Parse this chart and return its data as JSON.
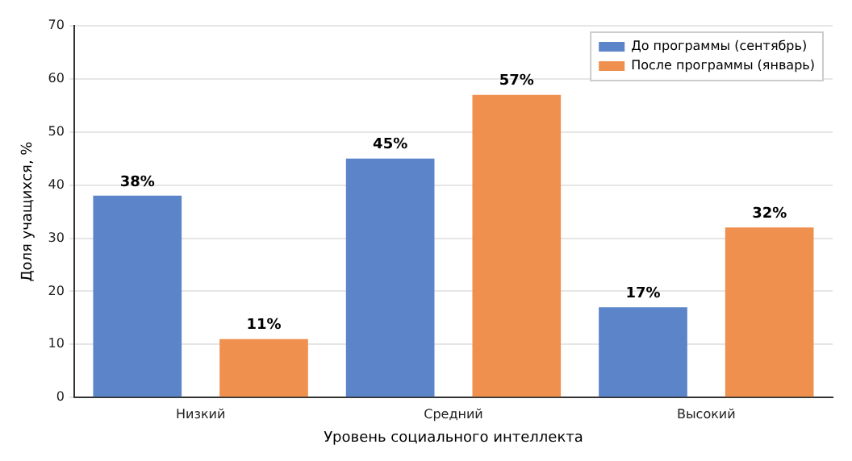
{
  "chart_data": {
    "type": "bar",
    "xlabel": "Уровень социального интеллекта",
    "ylabel": "Доля учащихся, %",
    "categories": [
      "Низкий",
      "Средний",
      "Высокий"
    ],
    "series": [
      {
        "name": "До программы (сентябрь)",
        "color": "#5b84c9",
        "values": [
          38,
          45,
          17
        ],
        "value_labels": [
          "38%",
          "45%",
          "17%"
        ]
      },
      {
        "name": "После программы (январь)",
        "color": "#f0904f",
        "values": [
          11,
          57,
          32
        ],
        "value_labels": [
          "11%",
          "57%",
          "32%"
        ]
      }
    ],
    "ylim": [
      0,
      70
    ],
    "yticks": [
      0,
      10,
      20,
      30,
      40,
      50,
      60,
      70
    ],
    "grid": "y",
    "legend": "top right"
  }
}
